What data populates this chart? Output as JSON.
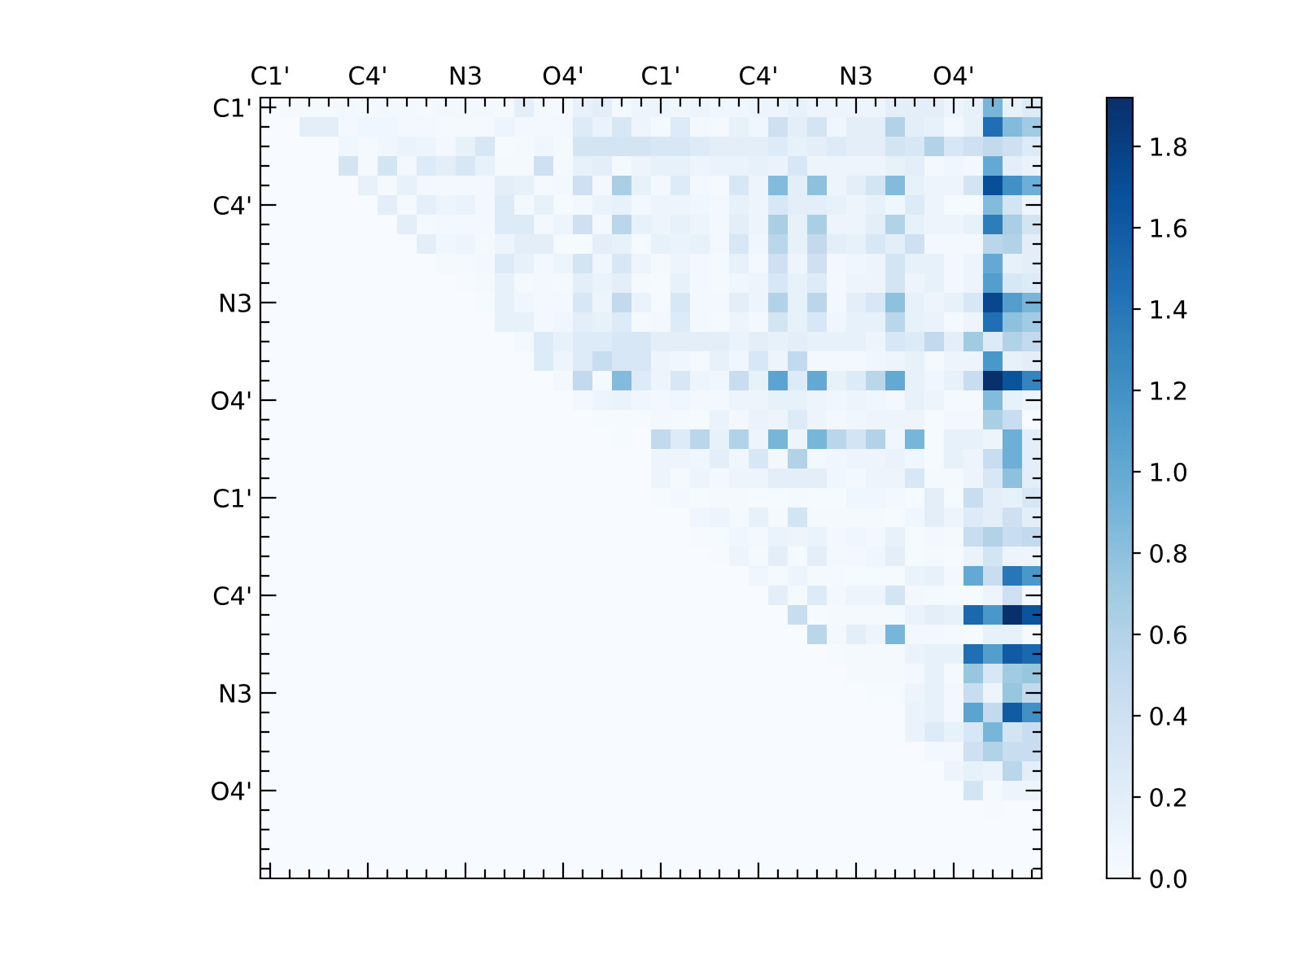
{
  "chart_data": {
    "type": "heatmap",
    "categories": [
      "C1'",
      null,
      null,
      null,
      null,
      "C4'",
      null,
      null,
      null,
      null,
      "N3",
      null,
      null,
      null,
      null,
      "O4'",
      null,
      null,
      null,
      null,
      "C1'",
      null,
      null,
      null,
      null,
      "C4'",
      null,
      null,
      null,
      null,
      "N3",
      null,
      null,
      null,
      null,
      "O4'",
      null,
      null,
      null,
      null
    ],
    "y_categories": [
      "C1'",
      null,
      null,
      null,
      null,
      "C4'",
      null,
      null,
      null,
      null,
      "N3",
      null,
      null,
      null,
      null,
      "O4'",
      null,
      null,
      null,
      null,
      "C1'",
      null,
      null,
      null,
      null,
      "C4'",
      null,
      null,
      null,
      null,
      "N3",
      null,
      null,
      null,
      null,
      "O4'",
      null,
      null,
      null,
      null
    ],
    "cells": [
      [
        0,
        0.03,
        0.03,
        0.03,
        0.05,
        0.03,
        0.05,
        0.05,
        0.03,
        0.05,
        0.05,
        0.05,
        0.03,
        0.2,
        0.05,
        0.03,
        0.15,
        0.2,
        0.05,
        0.1,
        0.1,
        0.07,
        0.1,
        0.07,
        0.07,
        0.1,
        0.1,
        0.15,
        0.1,
        0.1,
        0.1,
        0.1,
        0.2,
        0.2,
        0.2,
        0.1,
        0.15,
        0.9,
        0.15,
        0.25
      ],
      [
        0,
        0,
        0.2,
        0.2,
        0.05,
        0.07,
        0.07,
        0.05,
        0.05,
        0.03,
        0.03,
        0.03,
        0.1,
        0.05,
        0.05,
        0.05,
        0.25,
        0.12,
        0.3,
        0.1,
        0.03,
        0.25,
        0.05,
        0.03,
        0.15,
        0.07,
        0.4,
        0.2,
        0.35,
        0.07,
        0.2,
        0.2,
        0.6,
        0.2,
        0.15,
        0.05,
        0.15,
        1.45,
        0.85,
        0.7
      ],
      [
        0,
        0,
        0,
        0,
        0.07,
        0.03,
        0.07,
        0.12,
        0.1,
        0.05,
        0.15,
        0.3,
        0.02,
        0.03,
        0.07,
        0.03,
        0.35,
        0.35,
        0.35,
        0.35,
        0.3,
        0.3,
        0.25,
        0.2,
        0.2,
        0.2,
        0.25,
        0.15,
        0.2,
        0.25,
        0.2,
        0.2,
        0.35,
        0.3,
        0.6,
        0.3,
        0.4,
        0.5,
        0.4,
        0.25
      ],
      [
        0,
        0,
        0,
        0,
        0.35,
        0.03,
        0.35,
        0.05,
        0.25,
        0.2,
        0.3,
        0.15,
        0.03,
        0.03,
        0.4,
        0.03,
        0.15,
        0.2,
        0.03,
        0.1,
        0.15,
        0.15,
        0.1,
        0.12,
        0.12,
        0.15,
        0.12,
        0.3,
        0.1,
        0.1,
        0.1,
        0.1,
        0.15,
        0.2,
        0.05,
        0.07,
        0.05,
        1.0,
        0.2,
        0.12
      ],
      [
        0,
        0,
        0,
        0,
        0,
        0.15,
        0.03,
        0.15,
        0.05,
        0.05,
        0.05,
        0.05,
        0.2,
        0.15,
        0.03,
        0.05,
        0.4,
        0.05,
        0.65,
        0.15,
        0.05,
        0.25,
        0.05,
        0.03,
        0.3,
        0.1,
        0.85,
        0.2,
        0.8,
        0.1,
        0.2,
        0.35,
        0.85,
        0.15,
        0.1,
        0.1,
        0.35,
        1.7,
        1.2,
        0.95
      ],
      [
        0,
        0,
        0,
        0,
        0,
        0,
        0.2,
        0.03,
        0.18,
        0.1,
        0.12,
        0.05,
        0.25,
        0.05,
        0.15,
        0.02,
        0.05,
        0.12,
        0.15,
        0.05,
        0.1,
        0.1,
        0.07,
        0.05,
        0.15,
        0.1,
        0.3,
        0.2,
        0.2,
        0.15,
        0.1,
        0.15,
        0.07,
        0.25,
        0.1,
        0.02,
        0.02,
        0.85,
        0.35,
        0.1
      ],
      [
        0,
        0,
        0,
        0,
        0,
        0,
        0,
        0.2,
        0.03,
        0.05,
        0.05,
        0.05,
        0.25,
        0.25,
        0.05,
        0.1,
        0.4,
        0.05,
        0.55,
        0.15,
        0.1,
        0.15,
        0.1,
        0.05,
        0.2,
        0.1,
        0.65,
        0.15,
        0.65,
        0.1,
        0.1,
        0.2,
        0.6,
        0.15,
        0.1,
        0.1,
        0.15,
        1.35,
        0.65,
        0.35
      ],
      [
        0,
        0,
        0,
        0,
        0,
        0,
        0,
        0,
        0.2,
        0.07,
        0.1,
        0.03,
        0.1,
        0.2,
        0.2,
        0.02,
        0.02,
        0.2,
        0.15,
        0.02,
        0.15,
        0.12,
        0.15,
        0.05,
        0.3,
        0.07,
        0.55,
        0.15,
        0.5,
        0.2,
        0.15,
        0.3,
        0.2,
        0.4,
        0.05,
        0.05,
        0.05,
        0.55,
        0.6,
        0.2
      ],
      [
        0,
        0,
        0,
        0,
        0,
        0,
        0,
        0,
        0,
        0.03,
        0.03,
        0.05,
        0.25,
        0.15,
        0.05,
        0.1,
        0.35,
        0.07,
        0.3,
        0.1,
        0.03,
        0.1,
        0.05,
        0.03,
        0.15,
        0.05,
        0.4,
        0.1,
        0.4,
        0.05,
        0.07,
        0.1,
        0.35,
        0.15,
        0.15,
        0.05,
        0.1,
        1.0,
        0.15,
        0.2
      ],
      [
        0,
        0,
        0,
        0,
        0,
        0,
        0,
        0,
        0,
        0,
        0.02,
        0.03,
        0.15,
        0.03,
        0.05,
        0.03,
        0.2,
        0.12,
        0.2,
        0.03,
        0.02,
        0.15,
        0.05,
        0.03,
        0.07,
        0.1,
        0.3,
        0.15,
        0.25,
        0.05,
        0.1,
        0.1,
        0.35,
        0.1,
        0.15,
        0.05,
        0.1,
        1.1,
        0.3,
        0.25
      ],
      [
        0,
        0,
        0,
        0,
        0,
        0,
        0,
        0,
        0,
        0,
        0,
        0.02,
        0.15,
        0.07,
        0.05,
        0.05,
        0.3,
        0.1,
        0.5,
        0.12,
        0.02,
        0.3,
        0.05,
        0.05,
        0.2,
        0.1,
        0.6,
        0.15,
        0.55,
        0.05,
        0.2,
        0.3,
        0.8,
        0.15,
        0.1,
        0.15,
        0.3,
        1.75,
        1.1,
        0.9
      ],
      [
        0,
        0,
        0,
        0,
        0,
        0,
        0,
        0,
        0,
        0,
        0,
        0,
        0.15,
        0.15,
        0.05,
        0.07,
        0.2,
        0.15,
        0.25,
        0.03,
        0.05,
        0.25,
        0.05,
        0.03,
        0.1,
        0.05,
        0.35,
        0.15,
        0.3,
        0.07,
        0.15,
        0.15,
        0.55,
        0.15,
        0.12,
        0.03,
        0.1,
        1.45,
        0.8,
        0.7
      ],
      [
        0,
        0,
        0,
        0,
        0,
        0,
        0,
        0,
        0,
        0,
        0,
        0,
        0,
        0.05,
        0.25,
        0.15,
        0.25,
        0.25,
        0.3,
        0.3,
        0.2,
        0.2,
        0.2,
        0.2,
        0.12,
        0.2,
        0.15,
        0.2,
        0.15,
        0.15,
        0.15,
        0.1,
        0.3,
        0.25,
        0.5,
        0.2,
        0.7,
        0.25,
        0.6,
        0.5
      ],
      [
        0,
        0,
        0,
        0,
        0,
        0,
        0,
        0,
        0,
        0,
        0,
        0,
        0,
        0,
        0.25,
        0.1,
        0.25,
        0.45,
        0.3,
        0.3,
        0.1,
        0.07,
        0.03,
        0.15,
        0.07,
        0.3,
        0.1,
        0.5,
        0.05,
        0.05,
        0.05,
        0.07,
        0.1,
        0.15,
        0.03,
        0.1,
        0.1,
        1.15,
        0.15,
        0.2
      ],
      [
        0,
        0,
        0,
        0,
        0,
        0,
        0,
        0,
        0,
        0,
        0,
        0,
        0,
        0,
        0,
        0.05,
        0.5,
        0.03,
        0.85,
        0.25,
        0.1,
        0.3,
        0.1,
        0.07,
        0.45,
        0.15,
        1.05,
        0.25,
        1.0,
        0.15,
        0.25,
        0.55,
        1.0,
        0.15,
        0.07,
        0.15,
        0.45,
        1.92,
        1.65,
        1.3
      ],
      [
        0,
        0,
        0,
        0,
        0,
        0,
        0,
        0,
        0,
        0,
        0,
        0,
        0,
        0,
        0,
        0,
        0.05,
        0.1,
        0.12,
        0.07,
        0.05,
        0.07,
        0.05,
        0.05,
        0.1,
        0.1,
        0.15,
        0.15,
        0.1,
        0.07,
        0.1,
        0.07,
        0.05,
        0.15,
        0.1,
        0.03,
        0.03,
        0.85,
        0.15,
        0.1
      ],
      [
        0,
        0,
        0,
        0,
        0,
        0,
        0,
        0,
        0,
        0,
        0,
        0,
        0,
        0,
        0,
        0,
        0,
        0.02,
        0.02,
        0.02,
        0.05,
        0.03,
        0.02,
        0.12,
        0.05,
        0.12,
        0.1,
        0.25,
        0.1,
        0.05,
        0.07,
        0.1,
        0.1,
        0.1,
        0.02,
        0.05,
        0.05,
        0.65,
        0.45,
        0.01
      ],
      [
        0,
        0,
        0,
        0,
        0,
        0,
        0,
        0,
        0,
        0,
        0,
        0,
        0,
        0,
        0,
        0,
        0,
        0,
        0.02,
        0,
        0.5,
        0.25,
        0.55,
        0.15,
        0.6,
        0.1,
        0.9,
        0.1,
        0.9,
        0.55,
        0.35,
        0.6,
        0.07,
        0.9,
        0.02,
        0.15,
        0.15,
        0.1,
        0.95,
        0.2
      ],
      [
        0,
        0,
        0,
        0,
        0,
        0,
        0,
        0,
        0,
        0,
        0,
        0,
        0,
        0,
        0,
        0,
        0,
        0,
        0,
        0,
        0.1,
        0.1,
        0.07,
        0.2,
        0.07,
        0.3,
        0.05,
        0.6,
        0.05,
        0.07,
        0.1,
        0.1,
        0.12,
        0.07,
        0.02,
        0.15,
        0.1,
        0.45,
        0.95,
        0.2
      ],
      [
        0,
        0,
        0,
        0,
        0,
        0,
        0,
        0,
        0,
        0,
        0,
        0,
        0,
        0,
        0,
        0,
        0,
        0,
        0,
        0,
        0.1,
        0.03,
        0.1,
        0.05,
        0.1,
        0.1,
        0.2,
        0.2,
        0.2,
        0.07,
        0.05,
        0.1,
        0.1,
        0.3,
        0.03,
        0.03,
        0.1,
        0.3,
        0.8,
        0.2
      ],
      [
        0,
        0,
        0,
        0,
        0,
        0,
        0,
        0,
        0,
        0,
        0,
        0,
        0,
        0,
        0,
        0,
        0,
        0,
        0,
        0,
        0.02,
        0.05,
        0.02,
        0.03,
        0.03,
        0.02,
        0.02,
        0.03,
        0.02,
        0.02,
        0.07,
        0.07,
        0.05,
        0.02,
        0.2,
        0.02,
        0.45,
        0.2,
        0.15,
        0.3
      ],
      [
        0,
        0,
        0,
        0,
        0,
        0,
        0,
        0,
        0,
        0,
        0,
        0,
        0,
        0,
        0,
        0,
        0,
        0,
        0,
        0,
        0,
        0,
        0.07,
        0.1,
        0.03,
        0.15,
        0.03,
        0.35,
        0.03,
        0.03,
        0.03,
        0.03,
        0.02,
        0.07,
        0.2,
        0.1,
        0.25,
        0.2,
        0.4,
        0.2
      ],
      [
        0,
        0,
        0,
        0,
        0,
        0,
        0,
        0,
        0,
        0,
        0,
        0,
        0,
        0,
        0,
        0,
        0,
        0,
        0,
        0,
        0,
        0,
        0.01,
        0.02,
        0.07,
        0.05,
        0.12,
        0.1,
        0.12,
        0.05,
        0.07,
        0.05,
        0.15,
        0.02,
        0.05,
        0.03,
        0.45,
        0.6,
        0.45,
        0.5
      ],
      [
        0,
        0,
        0,
        0,
        0,
        0,
        0,
        0,
        0,
        0,
        0,
        0,
        0,
        0,
        0,
        0,
        0,
        0,
        0,
        0,
        0,
        0,
        0,
        0.01,
        0.1,
        0.03,
        0.2,
        0.02,
        0.2,
        0.05,
        0.05,
        0.07,
        0.2,
        0.02,
        0.03,
        0.02,
        0.12,
        0.35,
        0.1,
        0.1
      ],
      [
        0,
        0,
        0,
        0,
        0,
        0,
        0,
        0,
        0,
        0,
        0,
        0,
        0,
        0,
        0,
        0,
        0,
        0,
        0,
        0,
        0,
        0,
        0,
        0,
        0,
        0.07,
        0.03,
        0.1,
        0.03,
        0.03,
        0.02,
        0.02,
        0.02,
        0.12,
        0.15,
        0.05,
        1.0,
        0.45,
        1.4,
        1.15
      ],
      [
        0,
        0,
        0,
        0,
        0,
        0,
        0,
        0,
        0,
        0,
        0,
        0,
        0,
        0,
        0,
        0,
        0,
        0,
        0,
        0,
        0,
        0,
        0,
        0,
        0,
        0,
        0.2,
        0.03,
        0.25,
        0.05,
        0.1,
        0.1,
        0.35,
        0.05,
        0.03,
        0.02,
        0.02,
        0.1,
        0.4,
        0.05
      ],
      [
        0,
        0,
        0,
        0,
        0,
        0,
        0,
        0,
        0,
        0,
        0,
        0,
        0,
        0,
        0,
        0,
        0,
        0,
        0,
        0,
        0,
        0,
        0,
        0,
        0,
        0,
        0,
        0.45,
        0.02,
        0.03,
        0.03,
        0.03,
        0.03,
        0.12,
        0.2,
        0.15,
        1.5,
        1.15,
        1.92,
        1.65
      ],
      [
        0,
        0,
        0,
        0,
        0,
        0,
        0,
        0,
        0,
        0,
        0,
        0,
        0,
        0,
        0,
        0,
        0,
        0,
        0,
        0,
        0,
        0,
        0,
        0,
        0,
        0,
        0,
        0,
        0.55,
        0.05,
        0.2,
        0.1,
        0.9,
        0.05,
        0.05,
        0.03,
        0.02,
        0.15,
        0.15,
        0.02
      ],
      [
        0,
        0,
        0,
        0,
        0,
        0,
        0,
        0,
        0,
        0,
        0,
        0,
        0,
        0,
        0,
        0,
        0,
        0,
        0,
        0,
        0,
        0,
        0,
        0,
        0,
        0,
        0,
        0,
        0,
        0.02,
        0.03,
        0.03,
        0.03,
        0.12,
        0.15,
        0.15,
        1.45,
        1.1,
        1.6,
        1.5
      ],
      [
        0,
        0,
        0,
        0,
        0,
        0,
        0,
        0,
        0,
        0,
        0,
        0,
        0,
        0,
        0,
        0,
        0,
        0,
        0,
        0,
        0,
        0,
        0,
        0,
        0,
        0,
        0,
        0,
        0,
        0,
        0.03,
        0.03,
        0.03,
        0.05,
        0.15,
        0.03,
        0.75,
        0.3,
        0.7,
        0.75
      ],
      [
        0,
        0,
        0,
        0,
        0,
        0,
        0,
        0,
        0,
        0,
        0,
        0,
        0,
        0,
        0,
        0,
        0,
        0,
        0,
        0,
        0,
        0,
        0,
        0,
        0,
        0,
        0,
        0,
        0,
        0,
        0,
        0.02,
        0.02,
        0.1,
        0.15,
        0.05,
        0.45,
        0.1,
        0.75,
        0.5
      ],
      [
        0,
        0,
        0,
        0,
        0,
        0,
        0,
        0,
        0,
        0,
        0,
        0,
        0,
        0,
        0,
        0,
        0,
        0,
        0,
        0,
        0,
        0,
        0,
        0,
        0,
        0,
        0,
        0,
        0,
        0,
        0,
        0,
        0,
        0.12,
        0.15,
        0.05,
        1.05,
        0.5,
        1.6,
        1.2
      ],
      [
        0,
        0,
        0,
        0,
        0,
        0,
        0,
        0,
        0,
        0,
        0,
        0,
        0,
        0,
        0,
        0,
        0,
        0,
        0,
        0,
        0,
        0,
        0,
        0,
        0,
        0,
        0,
        0,
        0,
        0,
        0,
        0,
        0,
        0.12,
        0.25,
        0.15,
        0.3,
        0.9,
        0.35,
        0.45
      ],
      [
        0,
        0,
        0,
        0,
        0,
        0,
        0,
        0,
        0,
        0,
        0,
        0,
        0,
        0,
        0,
        0,
        0,
        0,
        0,
        0,
        0,
        0,
        0,
        0,
        0,
        0,
        0,
        0,
        0,
        0,
        0,
        0,
        0,
        0,
        0.05,
        0.05,
        0.4,
        0.6,
        0.45,
        0.45
      ],
      [
        0,
        0,
        0,
        0,
        0,
        0,
        0,
        0,
        0,
        0,
        0,
        0,
        0,
        0,
        0,
        0,
        0,
        0,
        0,
        0,
        0,
        0,
        0,
        0,
        0,
        0,
        0,
        0,
        0,
        0,
        0,
        0,
        0,
        0,
        0,
        0.1,
        0.15,
        0.12,
        0.55,
        0.2
      ],
      [
        0,
        0,
        0,
        0,
        0,
        0,
        0,
        0,
        0,
        0,
        0,
        0,
        0,
        0,
        0,
        0,
        0,
        0,
        0,
        0,
        0,
        0,
        0,
        0,
        0,
        0,
        0,
        0,
        0,
        0,
        0,
        0,
        0,
        0,
        0,
        0,
        0.35,
        0.03,
        0.1,
        0.1
      ],
      [
        0,
        0,
        0,
        0,
        0,
        0,
        0,
        0,
        0,
        0,
        0,
        0,
        0,
        0,
        0,
        0,
        0,
        0,
        0,
        0,
        0,
        0,
        0,
        0,
        0,
        0,
        0,
        0,
        0,
        0,
        0,
        0,
        0,
        0,
        0,
        0,
        0,
        0.01,
        0,
        0
      ],
      [
        0,
        0,
        0,
        0,
        0,
        0,
        0,
        0,
        0,
        0,
        0,
        0,
        0,
        0,
        0,
        0,
        0,
        0,
        0,
        0,
        0,
        0,
        0,
        0,
        0,
        0,
        0,
        0,
        0,
        0,
        0,
        0,
        0,
        0,
        0,
        0,
        0,
        0,
        0,
        0
      ],
      [
        0,
        0,
        0,
        0,
        0,
        0,
        0,
        0,
        0,
        0,
        0,
        0,
        0,
        0,
        0,
        0,
        0,
        0,
        0,
        0,
        0,
        0,
        0,
        0,
        0,
        0,
        0,
        0,
        0,
        0,
        0,
        0,
        0,
        0,
        0,
        0,
        0,
        0,
        0,
        0
      ],
      [
        0,
        0,
        0,
        0,
        0,
        0,
        0,
        0,
        0,
        0,
        0,
        0,
        0,
        0,
        0,
        0,
        0,
        0,
        0,
        0,
        0,
        0,
        0,
        0,
        0,
        0,
        0,
        0,
        0,
        0,
        0,
        0,
        0,
        0,
        0,
        0,
        0,
        0,
        0,
        0
      ]
    ],
    "clim": [
      0,
      1.92
    ],
    "cticks": [
      {
        "value": 0,
        "label": "0.0"
      },
      0.2,
      0.4,
      0.6,
      0.8,
      {
        "value": 1,
        "label": "1.0"
      },
      1.2,
      1.4,
      1.6,
      1.8
    ]
  }
}
